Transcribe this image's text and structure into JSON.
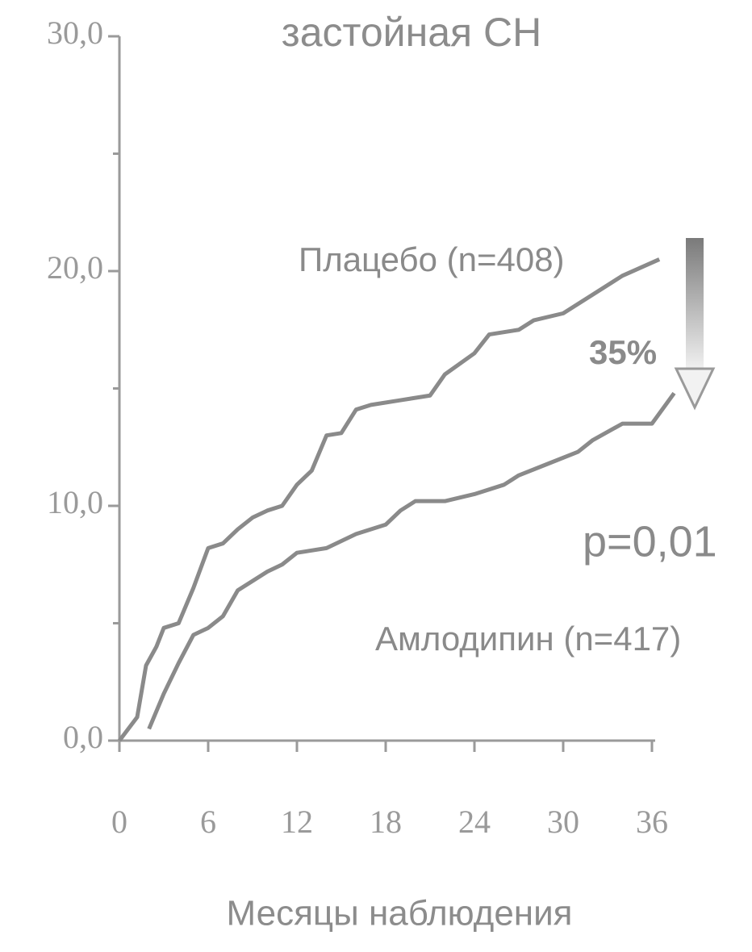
{
  "chart_data": {
    "type": "line",
    "title": "застойная СН",
    "xlabel": "Месяцы наблюдения",
    "x_label_note": null,
    "xlim": [
      0,
      36
    ],
    "xticks": [
      0,
      6,
      12,
      18,
      24,
      30,
      36
    ],
    "ylim": [
      0,
      30
    ],
    "yticks": [
      {
        "value": 0,
        "label": "0,0"
      },
      {
        "value": 10,
        "label": "10,0"
      },
      {
        "value": 20,
        "label": "20,0"
      },
      {
        "value": 30,
        "label": "30,0"
      }
    ],
    "yminor_ticks": [
      5,
      15,
      25
    ],
    "series": [
      {
        "name": "Плацебо (n=408)",
        "color": "#8a8a8a",
        "x": [
          0,
          1.2,
          1.8,
          2.5,
          3,
          4,
          5,
          6,
          7,
          8,
          9,
          10,
          11,
          12,
          13,
          14,
          15,
          16,
          17,
          19,
          21,
          22,
          24,
          25,
          27,
          28,
          30,
          32,
          34,
          36.5
        ],
        "values": [
          0,
          1,
          3.2,
          4,
          4.8,
          5,
          6.5,
          8.2,
          8.4,
          9,
          9.5,
          9.8,
          10,
          10.9,
          11.5,
          13,
          13.1,
          14.1,
          14.3,
          14.5,
          14.7,
          15.6,
          16.5,
          17.3,
          17.5,
          17.9,
          18.2,
          19,
          19.8,
          20.5
        ]
      },
      {
        "name": "Амлодипин (n=417)",
        "color": "#8a8a8a",
        "x": [
          2,
          3,
          4,
          5,
          6,
          7,
          8,
          9,
          10,
          11,
          12,
          14,
          16,
          18,
          19,
          20,
          22,
          24,
          26,
          27,
          29,
          31,
          32,
          34,
          36,
          37.5
        ],
        "values": [
          0.5,
          2,
          3.3,
          4.5,
          4.8,
          5.3,
          6.4,
          6.8,
          7.2,
          7.5,
          8,
          8.2,
          8.8,
          9.2,
          9.8,
          10.2,
          10.2,
          10.5,
          10.9,
          11.3,
          11.8,
          12.3,
          12.8,
          13.5,
          13.5,
          14.8
        ]
      }
    ],
    "annotations": [
      "35%",
      "p=0,01"
    ]
  }
}
